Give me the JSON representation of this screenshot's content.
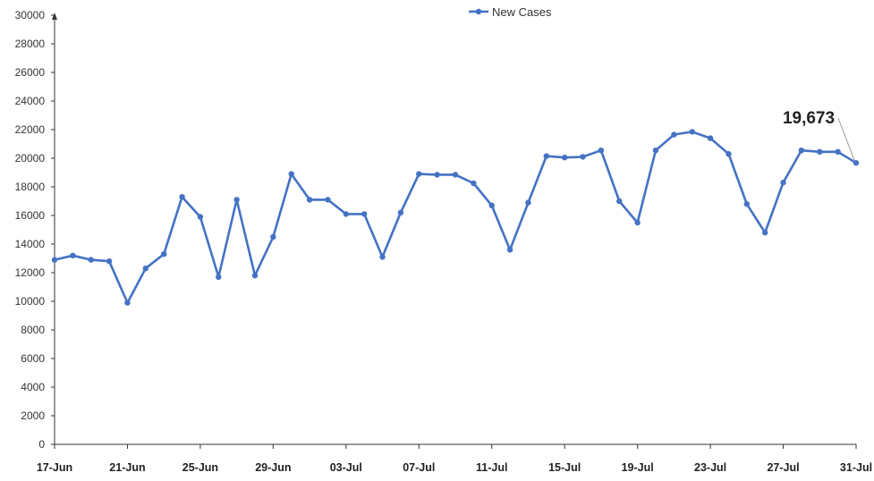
{
  "chart_data": {
    "type": "line",
    "legend": {
      "position": "top",
      "entries": [
        "New Cases"
      ]
    },
    "grid": false,
    "ylim": [
      0,
      30000
    ],
    "yticks": [
      0,
      2000,
      4000,
      6000,
      8000,
      10000,
      12000,
      14000,
      16000,
      18000,
      20000,
      22000,
      24000,
      26000,
      28000,
      30000
    ],
    "ytick_labels": [
      "0",
      "2000",
      "4000",
      "6000",
      "8000",
      "10000",
      "12000",
      "14000",
      "16000",
      "18000",
      "20000",
      "22000",
      "24000",
      "26000",
      "28000",
      "30000"
    ],
    "xtick_labels": [
      "17-Jun",
      "21-Jun",
      "25-Jun",
      "29-Jun",
      "03-Jul",
      "07-Jul",
      "11-Jul",
      "15-Jul",
      "19-Jul",
      "23-Jul",
      "27-Jul",
      "31-Jul"
    ],
    "x": [
      "17-Jun",
      "18-Jun",
      "19-Jun",
      "20-Jun",
      "21-Jun",
      "22-Jun",
      "23-Jun",
      "24-Jun",
      "25-Jun",
      "26-Jun",
      "27-Jun",
      "28-Jun",
      "29-Jun",
      "30-Jun",
      "01-Jul",
      "02-Jul",
      "03-Jul",
      "04-Jul",
      "05-Jul",
      "06-Jul",
      "07-Jul",
      "08-Jul",
      "09-Jul",
      "10-Jul",
      "11-Jul",
      "12-Jul",
      "13-Jul",
      "14-Jul",
      "15-Jul",
      "16-Jul",
      "17-Jul",
      "18-Jul",
      "19-Jul",
      "20-Jul",
      "21-Jul",
      "22-Jul",
      "23-Jul",
      "24-Jul",
      "25-Jul",
      "26-Jul",
      "27-Jul",
      "28-Jul",
      "29-Jul",
      "30-Jul",
      "31-Jul"
    ],
    "series": [
      {
        "name": "New Cases",
        "color": "#4472C4",
        "values": [
          12900,
          13200,
          12900,
          12800,
          9900,
          12300,
          13300,
          17300,
          15900,
          11700,
          17100,
          11800,
          14500,
          18900,
          17100,
          17100,
          16100,
          16100,
          13100,
          16200,
          18900,
          18850,
          18850,
          18250,
          16700,
          13600,
          16900,
          20150,
          20050,
          20100,
          20550,
          17000,
          15500,
          20550,
          21650,
          21850,
          21400,
          20300,
          16800,
          14800,
          18300,
          20550,
          20450,
          20450,
          19673
        ]
      }
    ],
    "annotations": [
      {
        "text": "19,673",
        "target": "31-Jul"
      }
    ]
  }
}
